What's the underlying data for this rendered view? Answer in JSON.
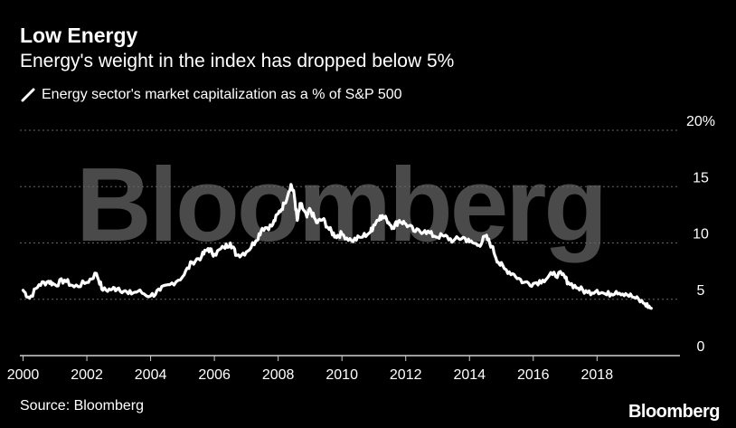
{
  "header": {
    "title": "Low Energy",
    "subtitle": "Energy's weight in the index has dropped below 5%"
  },
  "legend": {
    "label": "Energy sector's market capitalization as a % of S&P 500"
  },
  "source": "Source: Bloomberg",
  "brand": "Bloomberg",
  "watermark": "Bloomberg",
  "colors": {
    "background": "#000000",
    "line": "#ffffff",
    "grid": "#666666",
    "watermark": "#4a4a4a"
  },
  "chart_data": {
    "type": "line",
    "title": "Low Energy",
    "subtitle": "Energy's weight in the index has dropped below 5%",
    "xlabel": "",
    "ylabel": "",
    "xlim": [
      1999.9,
      2020.6
    ],
    "ylim": [
      0,
      20
    ],
    "x_ticks": [
      2000,
      2002,
      2004,
      2006,
      2008,
      2010,
      2012,
      2014,
      2016,
      2018
    ],
    "x_tick_labels": [
      "2000",
      "2002",
      "2004",
      "2006",
      "2008",
      "2010",
      "2012",
      "2014",
      "2016",
      "2018"
    ],
    "y_ticks": [
      0,
      5,
      10,
      15,
      20
    ],
    "y_tick_labels": [
      "0",
      "5",
      "10",
      "15",
      "20%"
    ],
    "grid": "horizontal-dotted",
    "series": [
      {
        "name": "Energy sector's market capitalization as a % of S&P 500",
        "x": [
          2000.0,
          2000.2,
          2000.5,
          2000.8,
          2001.0,
          2001.3,
          2001.6,
          2002.0,
          2002.3,
          2002.5,
          2002.8,
          2003.0,
          2003.3,
          2003.6,
          2004.0,
          2004.3,
          2004.6,
          2005.0,
          2005.3,
          2005.6,
          2005.8,
          2006.0,
          2006.3,
          2006.5,
          2006.7,
          2007.0,
          2007.3,
          2007.5,
          2007.8,
          2008.0,
          2008.2,
          2008.4,
          2008.5,
          2008.6,
          2008.7,
          2008.9,
          2009.0,
          2009.2,
          2009.4,
          2009.6,
          2009.8,
          2010.0,
          2010.3,
          2010.6,
          2010.9,
          2011.0,
          2011.2,
          2011.4,
          2011.6,
          2011.8,
          2012.0,
          2012.3,
          2012.6,
          2012.9,
          2013.2,
          2013.5,
          2013.8,
          2014.0,
          2014.3,
          2014.5,
          2014.7,
          2014.9,
          2015.1,
          2015.4,
          2015.7,
          2016.0,
          2016.3,
          2016.6,
          2016.9,
          2017.1,
          2017.4,
          2017.7,
          2018.0,
          2018.3,
          2018.6,
          2018.9,
          2019.2,
          2019.5,
          2019.7
        ],
        "values": [
          5.8,
          5.1,
          6.3,
          6.6,
          6.3,
          6.7,
          6.1,
          6.5,
          7.3,
          5.8,
          5.9,
          6.0,
          5.5,
          5.7,
          5.3,
          5.8,
          6.3,
          7.0,
          8.3,
          8.8,
          9.5,
          9.0,
          9.6,
          10.0,
          8.9,
          9.2,
          10.2,
          11.3,
          11.5,
          12.6,
          13.5,
          15.2,
          14.3,
          12.0,
          13.5,
          12.3,
          13.0,
          11.8,
          12.1,
          11.2,
          10.6,
          10.8,
          10.2,
          10.5,
          11.0,
          11.6,
          12.4,
          12.1,
          11.4,
          12.0,
          11.7,
          11.0,
          11.1,
          10.6,
          10.6,
          10.2,
          10.5,
          10.1,
          9.8,
          10.6,
          9.7,
          8.3,
          7.7,
          7.2,
          6.5,
          6.4,
          6.7,
          7.2,
          7.2,
          6.5,
          6.0,
          5.6,
          5.8,
          5.4,
          5.7,
          5.5,
          5.1,
          4.6,
          4.2
        ]
      }
    ]
  }
}
